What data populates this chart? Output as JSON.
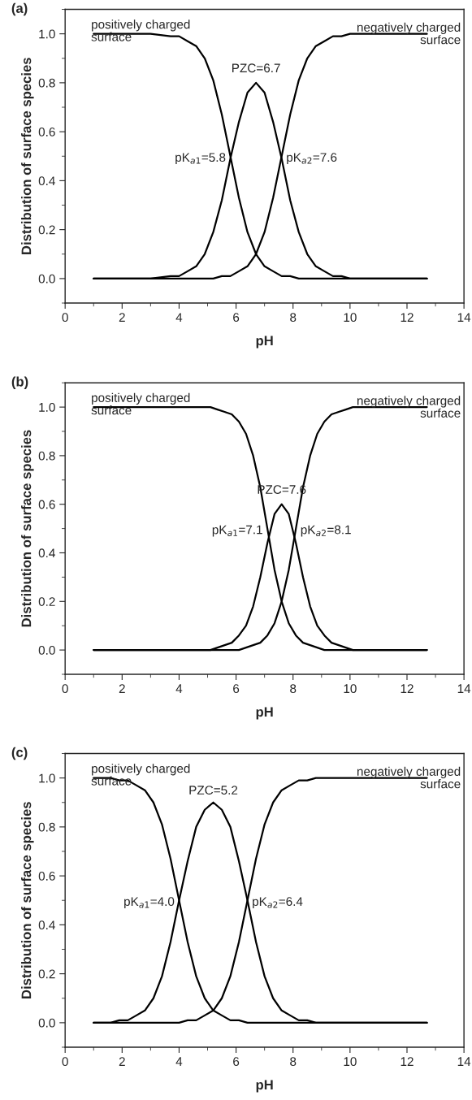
{
  "chart_data": [
    {
      "type": "line",
      "title": "(a)",
      "xlabel": "pH",
      "ylabel": "Distribution of surface species",
      "x": [
        1,
        2,
        3,
        3.7,
        4.0,
        4.3,
        4.6,
        4.9,
        5.2,
        5.5,
        5.8,
        6.1,
        6.4,
        6.7,
        7.0,
        7.3,
        7.6,
        7.9,
        8.2,
        8.5,
        8.8,
        9.1,
        9.4,
        9.7,
        10,
        11,
        12.7
      ],
      "series": [
        {
          "color": "#000000",
          "values": [
            1,
            1,
            1,
            0.99,
            0.99,
            0.97,
            0.95,
            0.9,
            0.81,
            0.67,
            0.5,
            0.33,
            0.19,
            0.1,
            0.05,
            0.03,
            0.01,
            0.01,
            0,
            0,
            0,
            0,
            0,
            0,
            0,
            0,
            0
          ]
        },
        {
          "color": "#000000",
          "values": [
            0,
            0,
            0,
            0.01,
            0.01,
            0.03,
            0.05,
            0.1,
            0.19,
            0.32,
            0.49,
            0.64,
            0.76,
            0.8,
            0.76,
            0.64,
            0.49,
            0.32,
            0.19,
            0.1,
            0.05,
            0.03,
            0.01,
            0.01,
            0,
            0,
            0
          ]
        },
        {
          "color": "#000000",
          "values": [
            0,
            0,
            0,
            0,
            0,
            0,
            0,
            0,
            0,
            0.01,
            0.01,
            0.03,
            0.05,
            0.1,
            0.19,
            0.33,
            0.5,
            0.67,
            0.81,
            0.9,
            0.95,
            0.97,
            0.99,
            0.99,
            1,
            1,
            1
          ]
        }
      ],
      "xlim": [
        0,
        14
      ],
      "ylim": [
        -0.1,
        1.1
      ],
      "xticks": [
        0,
        2,
        4,
        6,
        8,
        10,
        12,
        14
      ],
      "yticks": [
        {
          "value": 0,
          "label": "0.0"
        },
        {
          "value": 0.2,
          "label": "0.2"
        },
        {
          "value": 0.4,
          "label": "0.4"
        },
        {
          "value": 0.6,
          "label": "0.6"
        },
        {
          "value": 0.8,
          "label": "0.8"
        },
        {
          "value": 1,
          "label": "1.0"
        }
      ],
      "annotations": [
        "positively charged\nsurface",
        "negatively charged\nsurface",
        {
          "text": "PZC=6.7",
          "x": 6.7,
          "y": 0.8
        },
        {
          "text": "pK$_{a1}$=5.8",
          "x": 5.8,
          "y": 0.5
        },
        {
          "text": "pK$_{a2}$=7.6",
          "x": 7.6,
          "y": 0.5
        }
      ]
    },
    {
      "type": "line",
      "title": "(b)",
      "xlabel": "pH",
      "ylabel": "Distribution of surface species",
      "x": [
        1,
        2,
        3,
        4,
        4.6,
        4.85,
        5.1,
        5.35,
        5.6,
        5.85,
        6.1,
        6.35,
        6.6,
        6.85,
        7.1,
        7.35,
        7.6,
        7.85,
        8.1,
        8.35,
        8.6,
        8.85,
        9.1,
        9.35,
        9.6,
        9.85,
        10.1,
        11,
        12.7
      ],
      "series": [
        {
          "color": "#000000",
          "values": [
            1,
            1,
            1,
            1,
            1,
            1,
            1,
            0.99,
            0.98,
            0.97,
            0.94,
            0.89,
            0.8,
            0.67,
            0.5,
            0.33,
            0.2,
            0.11,
            0.06,
            0.03,
            0.02,
            0.01,
            0,
            0,
            0,
            0,
            0,
            0,
            0
          ]
        },
        {
          "color": "#000000",
          "values": [
            0,
            0,
            0,
            0,
            0,
            0,
            0,
            0.01,
            0.02,
            0.03,
            0.06,
            0.1,
            0.18,
            0.3,
            0.44,
            0.56,
            0.6,
            0.56,
            0.44,
            0.3,
            0.18,
            0.1,
            0.06,
            0.03,
            0.02,
            0.01,
            0,
            0,
            0
          ]
        },
        {
          "color": "#000000",
          "values": [
            0,
            0,
            0,
            0,
            0,
            0,
            0,
            0,
            0,
            0,
            0,
            0.01,
            0.02,
            0.03,
            0.06,
            0.11,
            0.2,
            0.33,
            0.5,
            0.67,
            0.8,
            0.89,
            0.94,
            0.97,
            0.98,
            0.99,
            1,
            1,
            1
          ]
        }
      ],
      "xlim": [
        0,
        14
      ],
      "ylim": [
        -0.1,
        1.1
      ],
      "xticks": [
        0,
        2,
        4,
        6,
        8,
        10,
        12,
        14
      ],
      "yticks": [
        {
          "value": 0,
          "label": "0.0"
        },
        {
          "value": 0.2,
          "label": "0.2"
        },
        {
          "value": 0.4,
          "label": "0.4"
        },
        {
          "value": 0.6,
          "label": "0.6"
        },
        {
          "value": 0.8,
          "label": "0.8"
        },
        {
          "value": 1,
          "label": "1.0"
        }
      ],
      "annotations": [
        "positively charged\nsurface",
        "negatively charged\nsurface",
        {
          "text": "PZC=7.6",
          "x": 7.6,
          "y": 0.6
        },
        {
          "text": "pK$_{a1}$=7.1",
          "x": 7.1,
          "y": 0.5
        },
        {
          "text": "pK$_{a2}$=8.1",
          "x": 8.1,
          "y": 0.5
        }
      ]
    },
    {
      "type": "line",
      "title": "(c)",
      "xlabel": "pH",
      "ylabel": "Distribution of surface species",
      "x": [
        1,
        1.6,
        1.9,
        2.2,
        2.5,
        2.8,
        3.1,
        3.4,
        3.7,
        4.0,
        4.3,
        4.6,
        4.9,
        5.2,
        5.5,
        5.8,
        6.1,
        6.4,
        6.7,
        7.0,
        7.3,
        7.6,
        7.9,
        8.2,
        8.5,
        8.8,
        10,
        11,
        12.7
      ],
      "series": [
        {
          "color": "#000000",
          "values": [
            1,
            1,
            0.99,
            0.99,
            0.97,
            0.95,
            0.9,
            0.81,
            0.67,
            0.5,
            0.33,
            0.19,
            0.1,
            0.05,
            0.03,
            0.01,
            0.01,
            0,
            0,
            0,
            0,
            0,
            0,
            0,
            0,
            0,
            0,
            0,
            0
          ]
        },
        {
          "color": "#000000",
          "values": [
            0,
            0,
            0.01,
            0.01,
            0.03,
            0.05,
            0.1,
            0.19,
            0.33,
            0.5,
            0.66,
            0.8,
            0.87,
            0.9,
            0.87,
            0.8,
            0.66,
            0.5,
            0.33,
            0.19,
            0.1,
            0.05,
            0.03,
            0.01,
            0.01,
            0,
            0,
            0,
            0
          ]
        },
        {
          "color": "#000000",
          "values": [
            0,
            0,
            0,
            0,
            0,
            0,
            0,
            0,
            0,
            0,
            0.01,
            0.01,
            0.03,
            0.05,
            0.1,
            0.19,
            0.33,
            0.5,
            0.67,
            0.81,
            0.9,
            0.95,
            0.97,
            0.99,
            0.99,
            1,
            1,
            1,
            1
          ]
        }
      ],
      "xlim": [
        0,
        14
      ],
      "ylim": [
        -0.1,
        1.1
      ],
      "xticks": [
        0,
        2,
        4,
        6,
        8,
        10,
        12,
        14
      ],
      "yticks": [
        {
          "value": 0,
          "label": "0.0"
        },
        {
          "value": 0.2,
          "label": "0.2"
        },
        {
          "value": 0.4,
          "label": "0.4"
        },
        {
          "value": 0.6,
          "label": "0.6"
        },
        {
          "value": 0.8,
          "label": "0.8"
        },
        {
          "value": 1,
          "label": "1.0"
        }
      ],
      "annotations": [
        "positively charged\nsurface",
        "negatively charged\nsurface",
        {
          "text": "PZC=5.2",
          "x": 5.2,
          "y": 0.89
        },
        {
          "text": "pK$_{a1}$=4.0",
          "x": 4.0,
          "y": 0.5
        },
        {
          "text": "pK$_{a2}$=6.4",
          "x": 6.4,
          "y": 0.5
        }
      ]
    }
  ]
}
